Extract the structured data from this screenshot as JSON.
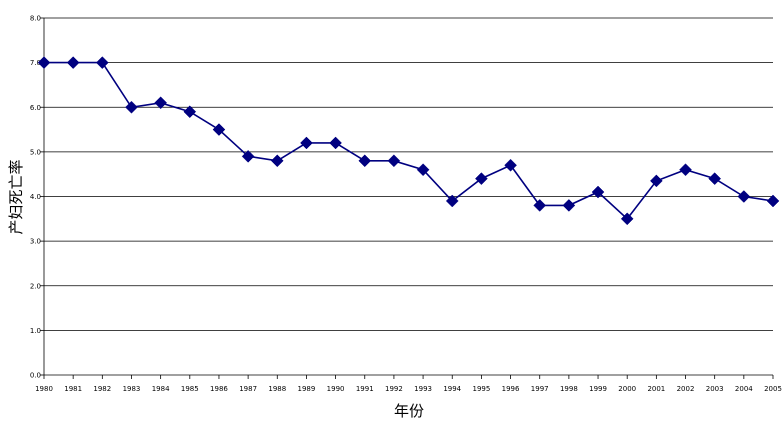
{
  "chart_data": {
    "type": "line",
    "title": "",
    "xlabel": "年份",
    "ylabel": "产妇死亡率",
    "ylim": [
      0,
      8
    ],
    "yticks": [
      "0.0",
      "1.0",
      "2.0",
      "3.0",
      "4.0",
      "5.0",
      "6.0",
      "7.0",
      "8.0"
    ],
    "categories": [
      "1980",
      "1981",
      "1982",
      "1983",
      "1984",
      "1985",
      "1986",
      "1987",
      "1988",
      "1989",
      "1990",
      "1991",
      "1992",
      "1993",
      "1994",
      "1995",
      "1996",
      "1997",
      "1998",
      "1999",
      "2000",
      "2001",
      "2002",
      "2003",
      "2004",
      "2005"
    ],
    "values": [
      7.0,
      7.0,
      7.0,
      6.0,
      6.1,
      5.9,
      5.5,
      4.9,
      4.8,
      5.2,
      5.2,
      4.8,
      4.8,
      4.6,
      3.9,
      4.4,
      4.7,
      3.8,
      3.8,
      4.1,
      3.5,
      4.35,
      4.6,
      4.4,
      4.0,
      3.9
    ],
    "grid": true,
    "legend": "none",
    "line_color": "#000080",
    "marker": "diamond"
  }
}
